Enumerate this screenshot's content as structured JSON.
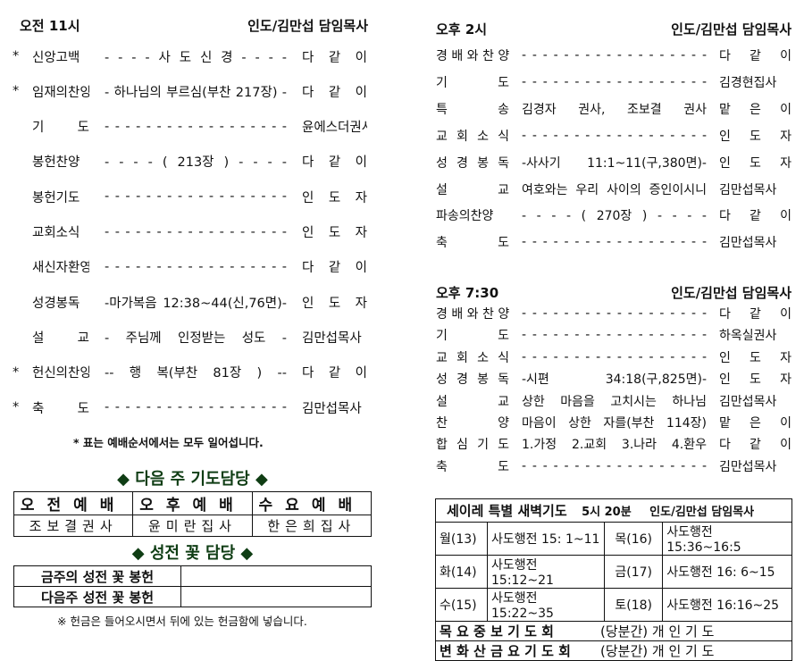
{
  "morning": {
    "time": "오전 11시",
    "leader": "인도/김만섭 담임목사",
    "items": [
      {
        "star": "*",
        "label": "신앙고백",
        "mid": "- - - -   사 도 신 경   - - - -",
        "right": "다 같 이"
      },
      {
        "star": "*",
        "label": "임재의찬양",
        "mid": "- 하나님의 부르심(부찬 217장) -",
        "right": "다 같 이"
      },
      {
        "star": "",
        "label": "기 도",
        "mid": "- - - - - - - - - - - - - - - - - -",
        "right": "윤에스더권사"
      },
      {
        "star": "",
        "label": "봉헌찬양",
        "mid": "- - - -  (  213장  )  - - - -",
        "right": "다 같 이"
      },
      {
        "star": "",
        "label": "봉헌기도",
        "mid": "- - - - - - - - - - - - - - - - - -",
        "right": "인 도 자"
      },
      {
        "star": "",
        "label": "교회소식",
        "mid": "- - - - - - - - - - - - - - - - - -",
        "right": "인 도 자"
      },
      {
        "star": "",
        "label": "새신자환영",
        "mid": "- - - - - - - - - - - - - - - - - -",
        "right": "다 같 이"
      },
      {
        "star": "",
        "label": "성경봉독",
        "mid": "-마가복음 12:38~44(신,76면)-",
        "right": "인 도 자"
      },
      {
        "star": "",
        "label": "설 교",
        "mid": "- 주님께 인정받는 성도 -",
        "right": "김만섭목사"
      },
      {
        "star": "*",
        "label": "헌신의찬양",
        "mid": "-- 행 복(부찬 81장 ) --",
        "right": "다 같 이"
      },
      {
        "star": "*",
        "label": "축 도",
        "mid": "- - - - - - - - - - - - - - - - - -",
        "right": "김만섭목사"
      }
    ],
    "note": "* 표는 예배순서에서는 모두 일어섭니다."
  },
  "prayer": {
    "heading": "◆ 다음 주 기도담당 ◆",
    "headers": [
      "오전예배",
      "오후예배",
      "수요예배"
    ],
    "names": [
      "조보결권사",
      "윤미란집사",
      "한은희집사"
    ]
  },
  "flowers": {
    "heading": "◆ 성전 꽃 담당 ◆",
    "rows": [
      {
        "label": "금주의 성전 꽃 봉헌",
        "value": ""
      },
      {
        "label": "다음주 성전 꽃 봉헌",
        "value": ""
      }
    ],
    "note": "※ 헌금은 들어오시면서 뒤에 있는 헌금함에 넣습니다."
  },
  "afternoon": {
    "time": "오후 2시",
    "leader": "인도/김만섭 담임목사",
    "items": [
      {
        "label": "경 배 와 찬 양",
        "mid": "- - - - - - - - - - - - - - - - - -",
        "right": "다 같 이"
      },
      {
        "label": "기 도",
        "mid": "- - - - - - - - - - - - - - - - - -",
        "right": "김경현집사"
      },
      {
        "label": "특 송",
        "mid": "김경자 권사, 조보결 권사",
        "right": "맡 은 이"
      },
      {
        "label": "교 회 소 식",
        "mid": "- - - - - - - - - - - - - - - - - -",
        "right": "인 도 자"
      },
      {
        "label": "성 경 봉 독",
        "mid": "-사사기 11:1~11(구,380면)-",
        "right": "인 도 자"
      },
      {
        "label": "설 교",
        "mid": "여호와는 우리 사이의 증인이시니",
        "right": "김만섭목사"
      },
      {
        "label": "파송의찬양",
        "mid": "- - - -  (  270장  )  - - - -",
        "right": "다 같 이"
      },
      {
        "label": "축 도",
        "mid": "- - - - - - - - - - - - - - - - - -",
        "right": "김만섭목사"
      }
    ]
  },
  "evening": {
    "time": "오후 7:30",
    "leader": "인도/김만섭 담임목사",
    "items": [
      {
        "label": "경 배 와 찬 양",
        "mid": "- - - - - - - - - - - - - - - - - -",
        "right": "다 같 이"
      },
      {
        "label": "기 도",
        "mid": "- - - - - - - - - - - - - - - - - -",
        "right": "하옥실권사"
      },
      {
        "label": "교 회 소 식",
        "mid": "- - - - - - - - - - - - - - - - - -",
        "right": "인 도 자"
      },
      {
        "label": "성 경 봉 독",
        "mid": "-시편 34:18(구,825면)-",
        "right": "인 도 자"
      },
      {
        "label": "설 교",
        "mid": "상한 마음을 고치시는 하나님",
        "right": "김만섭목사"
      },
      {
        "label": "찬 양",
        "mid": "마음이 상한 자를(부찬 114장)",
        "right": "맡 은 이"
      },
      {
        "label": "합 심 기 도",
        "mid": "1.가정 2.교회 3.나라 4.환우",
        "right": "다 같 이"
      },
      {
        "label": "축 도",
        "mid": "- - - - - - - - - - - - - - - - - -",
        "right": "김만섭목사"
      }
    ]
  },
  "dawn": {
    "title": "세이레 특별 새벽기도",
    "time": "5시 20분",
    "leader": "인도/김만섭 담임목사",
    "days": [
      {
        "d1": "월(13)",
        "r1": "사도행전 15: 1~11",
        "d2": "목(16)",
        "r2": "사도행전 15:36~16:5"
      },
      {
        "d1": "화(14)",
        "r1": "사도행전 15:12~21",
        "d2": "금(17)",
        "r2": "사도행전 16: 6~15"
      },
      {
        "d1": "수(15)",
        "r1": "사도행전 15:22~35",
        "d2": "토(18)",
        "r2": "사도행전 16:16~25"
      }
    ],
    "extra": [
      {
        "label": "목 요 중 보 기 도 회",
        "value": "(당분간) 개 인 기 도"
      },
      {
        "label": "변 화 산 금 요 기 도 회",
        "value": "(당분간) 개 인 기 도"
      }
    ]
  }
}
